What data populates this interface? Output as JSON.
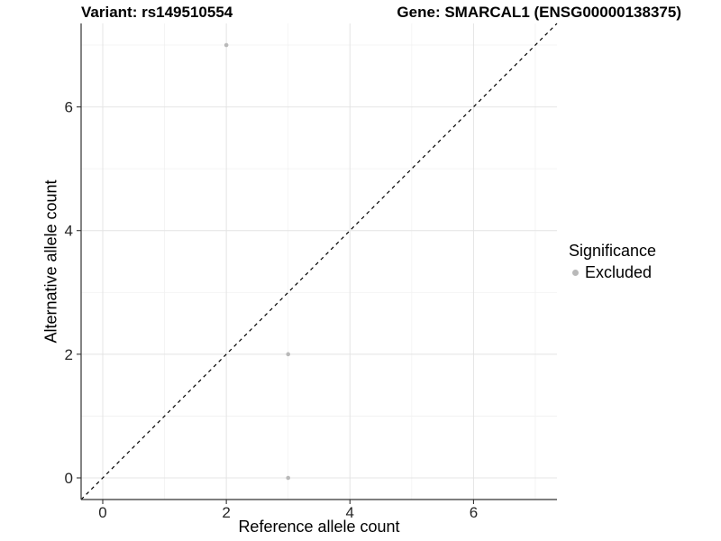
{
  "chart_data": {
    "type": "scatter",
    "titles": {
      "left": "Variant: rs149510554",
      "right": "Gene: SMARCAL1 (ENSG00000138375)"
    },
    "xlabel": "Reference allele count",
    "ylabel": "Alternative allele count",
    "xlim": [
      -0.35,
      7.35
    ],
    "ylim": [
      -0.35,
      7.35
    ],
    "xticks": [
      0,
      2,
      4,
      6
    ],
    "yticks": [
      0,
      2,
      4,
      6
    ],
    "minor_gridlines": [
      1,
      3,
      5,
      7
    ],
    "grid": "on",
    "series": [
      {
        "name": "Excluded",
        "color": "#b9b9b9",
        "points": [
          [
            2,
            7
          ],
          [
            3,
            2
          ],
          [
            3,
            0
          ]
        ]
      }
    ],
    "reference_line": {
      "type": "identity",
      "equation": "y = x",
      "style": "dashed",
      "color": "#000000"
    },
    "legend": {
      "title": "Significance",
      "position": "right",
      "entries": [
        {
          "label": "Excluded",
          "color": "#b9b9b9",
          "marker": "circle"
        }
      ]
    },
    "colors": {
      "background": "#ffffff",
      "grid_major": "#e4e4e4",
      "grid_minor": "#f1f1f1",
      "axis_line": "#333333",
      "tick_text": "#262626"
    }
  }
}
